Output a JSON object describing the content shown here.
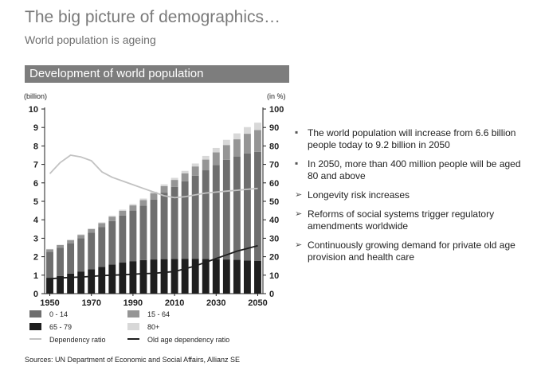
{
  "header": {
    "title": "The big picture of demographics…",
    "subtitle": "World population is ageing"
  },
  "banner": "Development of world population",
  "chart_data": {
    "type": "bar",
    "stacked": true,
    "x": [
      1950,
      1955,
      1960,
      1965,
      1970,
      1975,
      1980,
      1985,
      1990,
      1995,
      2000,
      2005,
      2010,
      2015,
      2020,
      2025,
      2030,
      2035,
      2040,
      2045,
      2050
    ],
    "x_tick_labels": [
      "1950",
      "1970",
      "1990",
      "2010",
      "2030",
      "2050"
    ],
    "y_left_label": "(billion)",
    "y_right_label": "(in %)",
    "ylim_left": [
      0,
      10
    ],
    "ylim_right": [
      0,
      100
    ],
    "y_left_ticks": [
      "0",
      "1",
      "2",
      "3",
      "4",
      "5",
      "6",
      "7",
      "8",
      "9",
      "10"
    ],
    "y_right_ticks": [
      "0",
      "10",
      "20",
      "30",
      "40",
      "50",
      "60",
      "70",
      "80",
      "90",
      "100"
    ],
    "series": [
      {
        "name": "65 - 79",
        "axis": "left",
        "color": "#1e1e1e",
        "values": [
          0.86,
          0.96,
          1.08,
          1.2,
          1.32,
          1.45,
          1.58,
          1.68,
          1.76,
          1.82,
          1.85,
          1.87,
          1.88,
          1.89,
          1.89,
          1.88,
          1.87,
          1.85,
          1.83,
          1.8,
          1.78
        ]
      },
      {
        "name": "0 - 14",
        "axis": "left",
        "color": "#6e6e6e",
        "values": [
          1.4,
          1.52,
          1.65,
          1.8,
          1.98,
          2.15,
          2.35,
          2.55,
          2.74,
          2.95,
          3.25,
          3.6,
          3.9,
          4.2,
          4.5,
          4.8,
          5.1,
          5.4,
          5.6,
          5.8,
          5.9
        ]
      },
      {
        "name": "15 - 64",
        "axis": "left",
        "color": "#959595",
        "values": [
          0.14,
          0.15,
          0.17,
          0.18,
          0.2,
          0.22,
          0.24,
          0.26,
          0.28,
          0.3,
          0.33,
          0.35,
          0.38,
          0.43,
          0.5,
          0.58,
          0.68,
          0.8,
          0.93,
          1.06,
          1.18
        ]
      },
      {
        "name": "80+",
        "axis": "left",
        "color": "#d8d8d8",
        "values": [
          0.02,
          0.02,
          0.02,
          0.03,
          0.03,
          0.04,
          0.05,
          0.06,
          0.07,
          0.08,
          0.09,
          0.1,
          0.11,
          0.13,
          0.16,
          0.2,
          0.24,
          0.28,
          0.32,
          0.36,
          0.4
        ]
      },
      {
        "name": "Dependency ratio",
        "axis": "right",
        "type": "line",
        "color": "#c2c2c2",
        "values": [
          65,
          71,
          75,
          74,
          72,
          66,
          63,
          61,
          59,
          57,
          55,
          53,
          52,
          52.5,
          53.5,
          54.5,
          55,
          55.5,
          56,
          56.5,
          57
        ]
      },
      {
        "name": "Old age dependency ratio",
        "axis": "right",
        "type": "line",
        "color": "#1e1e1e",
        "values": [
          8,
          8.5,
          8.8,
          9,
          9.3,
          9.8,
          10,
          10.2,
          10.5,
          10.8,
          11,
          11.5,
          12,
          13.5,
          15,
          17,
          19,
          21,
          23,
          24.5,
          26
        ]
      }
    ],
    "legend": [
      {
        "label": "0 - 14",
        "kind": "box",
        "color": "#6e6e6e"
      },
      {
        "label": "15 - 64",
        "kind": "box",
        "color": "#959595"
      },
      {
        "label": "65 - 79",
        "kind": "box",
        "color": "#1e1e1e"
      },
      {
        "label": "80+",
        "kind": "box",
        "color": "#d8d8d8"
      },
      {
        "label": "Dependency ratio",
        "kind": "line",
        "color": "#c2c2c2"
      },
      {
        "label": "Old age dependency ratio",
        "kind": "line",
        "color": "#1e1e1e"
      }
    ],
    "legend_position": "bottom-left",
    "grid": false
  },
  "bullets": [
    {
      "marker": "▪",
      "text": "The world population will increase from 6.6 billion people today to 9.2 billion in 2050"
    },
    {
      "marker": "▪",
      "text": "In 2050, more than 400 million people will be aged 80 and above"
    },
    {
      "marker": "➢",
      "text": "Longevity risk increases"
    },
    {
      "marker": "➢",
      "text": "Reforms of social systems trigger regulatory amendments worldwide"
    },
    {
      "marker": "➢",
      "text": "Continuously growing demand for private old age provision and health care"
    }
  ],
  "source": "Sources: UN Department of Economic and Social Affairs, Allianz SE"
}
